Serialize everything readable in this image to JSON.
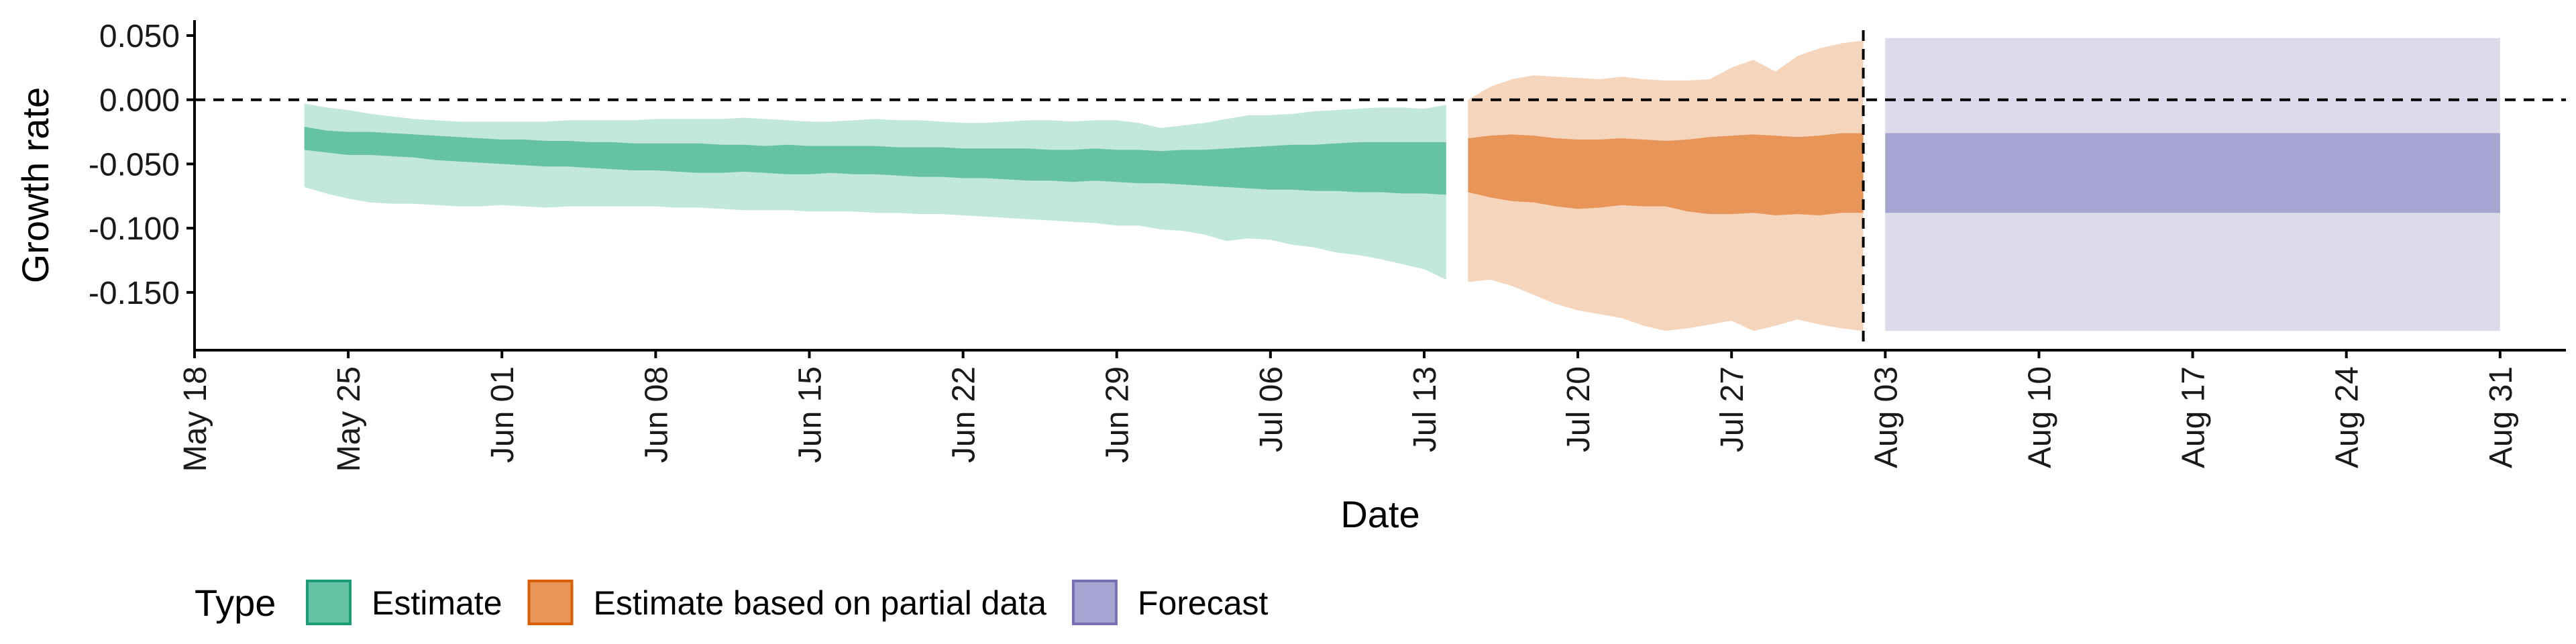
{
  "chart_data": {
    "type": "area",
    "xlabel": "Date",
    "ylabel": "Growth rate",
    "x_range": [
      "2020-05-18",
      "2020-09-03"
    ],
    "ylim": [
      -0.195,
      0.062
    ],
    "x_ticks": [
      {
        "date": "2020-05-18",
        "label": "May 18"
      },
      {
        "date": "2020-05-25",
        "label": "May 25"
      },
      {
        "date": "2020-06-01",
        "label": "Jun 01"
      },
      {
        "date": "2020-06-08",
        "label": "Jun 08"
      },
      {
        "date": "2020-06-15",
        "label": "Jun 15"
      },
      {
        "date": "2020-06-22",
        "label": "Jun 22"
      },
      {
        "date": "2020-06-29",
        "label": "Jun 29"
      },
      {
        "date": "2020-07-06",
        "label": "Jul 06"
      },
      {
        "date": "2020-07-13",
        "label": "Jul 13"
      },
      {
        "date": "2020-07-20",
        "label": "Jul 20"
      },
      {
        "date": "2020-07-27",
        "label": "Jul 27"
      },
      {
        "date": "2020-08-03",
        "label": "Aug 03"
      },
      {
        "date": "2020-08-10",
        "label": "Aug 10"
      },
      {
        "date": "2020-08-17",
        "label": "Aug 17"
      },
      {
        "date": "2020-08-24",
        "label": "Aug 24"
      },
      {
        "date": "2020-08-31",
        "label": "Aug 31"
      }
    ],
    "y_ticks": [
      {
        "value": 0.05,
        "label": "0.050"
      },
      {
        "value": 0.0,
        "label": "0.000"
      },
      {
        "value": -0.05,
        "label": "-0.050"
      },
      {
        "value": -0.1,
        "label": "-0.100"
      },
      {
        "value": -0.15,
        "label": "-0.150"
      }
    ],
    "reference_lines": [
      {
        "axis": "y",
        "value": 0.0,
        "style": "dashed"
      },
      {
        "axis": "x",
        "value": "2020-08-02",
        "style": "dashed"
      }
    ],
    "legend": {
      "title": "Type",
      "position": "bottom",
      "entries": [
        {
          "label": "Estimate",
          "color": "#66c2a5",
          "border": "#1b9e77"
        },
        {
          "label": "Estimate based on partial data",
          "color": "#e8955a",
          "border": "#d95f02"
        },
        {
          "label": "Forecast",
          "color": "#a6a4d0",
          "border": "#7570b3"
        }
      ]
    },
    "series": [
      {
        "name": "Estimate",
        "color": "#66c2a5",
        "dates": [
          "2020-05-23",
          "2020-05-24",
          "2020-05-25",
          "2020-05-26",
          "2020-05-27",
          "2020-05-28",
          "2020-05-29",
          "2020-05-30",
          "2020-05-31",
          "2020-06-01",
          "2020-06-02",
          "2020-06-03",
          "2020-06-04",
          "2020-06-05",
          "2020-06-06",
          "2020-06-07",
          "2020-06-08",
          "2020-06-09",
          "2020-06-10",
          "2020-06-11",
          "2020-06-12",
          "2020-06-13",
          "2020-06-14",
          "2020-06-15",
          "2020-06-16",
          "2020-06-17",
          "2020-06-18",
          "2020-06-19",
          "2020-06-20",
          "2020-06-21",
          "2020-06-22",
          "2020-06-23",
          "2020-06-24",
          "2020-06-25",
          "2020-06-26",
          "2020-06-27",
          "2020-06-28",
          "2020-06-29",
          "2020-06-30",
          "2020-07-01",
          "2020-07-02",
          "2020-07-03",
          "2020-07-04",
          "2020-07-05",
          "2020-07-06",
          "2020-07-07",
          "2020-07-08",
          "2020-07-09",
          "2020-07-10",
          "2020-07-11",
          "2020-07-12",
          "2020-07-13",
          "2020-07-14"
        ],
        "inner_upper": [
          -0.021,
          -0.024,
          -0.025,
          -0.025,
          -0.026,
          -0.027,
          -0.028,
          -0.029,
          -0.03,
          -0.031,
          -0.031,
          -0.032,
          -0.032,
          -0.033,
          -0.033,
          -0.034,
          -0.034,
          -0.034,
          -0.034,
          -0.035,
          -0.035,
          -0.036,
          -0.035,
          -0.036,
          -0.036,
          -0.036,
          -0.036,
          -0.037,
          -0.037,
          -0.037,
          -0.038,
          -0.038,
          -0.038,
          -0.038,
          -0.039,
          -0.039,
          -0.038,
          -0.039,
          -0.039,
          -0.04,
          -0.039,
          -0.039,
          -0.038,
          -0.037,
          -0.036,
          -0.035,
          -0.035,
          -0.034,
          -0.033,
          -0.033,
          -0.033,
          -0.033,
          -0.033
        ],
        "inner_lower": [
          -0.039,
          -0.041,
          -0.043,
          -0.043,
          -0.044,
          -0.045,
          -0.047,
          -0.048,
          -0.049,
          -0.05,
          -0.051,
          -0.052,
          -0.052,
          -0.053,
          -0.054,
          -0.055,
          -0.055,
          -0.056,
          -0.057,
          -0.057,
          -0.056,
          -0.057,
          -0.058,
          -0.058,
          -0.057,
          -0.058,
          -0.058,
          -0.059,
          -0.06,
          -0.06,
          -0.061,
          -0.061,
          -0.062,
          -0.063,
          -0.063,
          -0.064,
          -0.063,
          -0.064,
          -0.065,
          -0.065,
          -0.066,
          -0.067,
          -0.068,
          -0.069,
          -0.07,
          -0.07,
          -0.071,
          -0.071,
          -0.072,
          -0.072,
          -0.073,
          -0.073,
          -0.074
        ],
        "outer_upper": [
          -0.003,
          -0.006,
          -0.008,
          -0.011,
          -0.013,
          -0.015,
          -0.016,
          -0.017,
          -0.017,
          -0.017,
          -0.017,
          -0.017,
          -0.016,
          -0.016,
          -0.016,
          -0.016,
          -0.015,
          -0.015,
          -0.015,
          -0.015,
          -0.014,
          -0.015,
          -0.016,
          -0.017,
          -0.017,
          -0.016,
          -0.015,
          -0.016,
          -0.016,
          -0.017,
          -0.018,
          -0.018,
          -0.017,
          -0.016,
          -0.016,
          -0.017,
          -0.016,
          -0.016,
          -0.018,
          -0.022,
          -0.02,
          -0.018,
          -0.015,
          -0.012,
          -0.012,
          -0.011,
          -0.009,
          -0.008,
          -0.007,
          -0.006,
          -0.006,
          -0.007,
          -0.004
        ],
        "outer_lower": [
          -0.068,
          -0.073,
          -0.077,
          -0.08,
          -0.081,
          -0.081,
          -0.082,
          -0.083,
          -0.083,
          -0.082,
          -0.083,
          -0.084,
          -0.083,
          -0.083,
          -0.083,
          -0.083,
          -0.083,
          -0.084,
          -0.084,
          -0.085,
          -0.086,
          -0.086,
          -0.086,
          -0.087,
          -0.087,
          -0.087,
          -0.088,
          -0.088,
          -0.089,
          -0.089,
          -0.09,
          -0.091,
          -0.092,
          -0.093,
          -0.094,
          -0.095,
          -0.096,
          -0.098,
          -0.098,
          -0.101,
          -0.102,
          -0.105,
          -0.11,
          -0.108,
          -0.109,
          -0.113,
          -0.115,
          -0.119,
          -0.121,
          -0.124,
          -0.128,
          -0.132,
          -0.14
        ]
      },
      {
        "name": "Estimate based on partial data",
        "color": "#e8955a",
        "dates": [
          "2020-07-15",
          "2020-07-16",
          "2020-07-17",
          "2020-07-18",
          "2020-07-19",
          "2020-07-20",
          "2020-07-21",
          "2020-07-22",
          "2020-07-23",
          "2020-07-24",
          "2020-07-25",
          "2020-07-26",
          "2020-07-27",
          "2020-07-28",
          "2020-07-29",
          "2020-07-30",
          "2020-07-31",
          "2020-08-01",
          "2020-08-02"
        ],
        "inner_upper": [
          -0.03,
          -0.028,
          -0.027,
          -0.028,
          -0.03,
          -0.031,
          -0.031,
          -0.03,
          -0.031,
          -0.032,
          -0.031,
          -0.029,
          -0.028,
          -0.027,
          -0.028,
          -0.029,
          -0.028,
          -0.026,
          -0.026
        ],
        "inner_lower": [
          -0.072,
          -0.076,
          -0.079,
          -0.08,
          -0.083,
          -0.085,
          -0.084,
          -0.082,
          -0.083,
          -0.083,
          -0.087,
          -0.089,
          -0.089,
          -0.088,
          -0.09,
          -0.089,
          -0.09,
          -0.088,
          -0.088
        ],
        "outer_upper": [
          0.0,
          0.01,
          0.016,
          0.019,
          0.018,
          0.017,
          0.016,
          0.018,
          0.016,
          0.015,
          0.015,
          0.016,
          0.025,
          0.031,
          0.022,
          0.034,
          0.04,
          0.044,
          0.046
        ],
        "outer_lower": [
          -0.142,
          -0.14,
          -0.145,
          -0.152,
          -0.159,
          -0.164,
          -0.167,
          -0.17,
          -0.176,
          -0.18,
          -0.178,
          -0.175,
          -0.172,
          -0.18,
          -0.176,
          -0.171,
          -0.175,
          -0.178,
          -0.18
        ]
      },
      {
        "name": "Forecast",
        "color": "#a6a4d0",
        "dates": [
          "2020-08-03",
          "2020-08-31"
        ],
        "inner_upper": [
          -0.026,
          -0.026
        ],
        "inner_lower": [
          -0.088,
          -0.088
        ],
        "outer_upper": [
          0.048,
          0.048
        ],
        "outer_lower": [
          -0.18,
          -0.18
        ]
      }
    ]
  }
}
